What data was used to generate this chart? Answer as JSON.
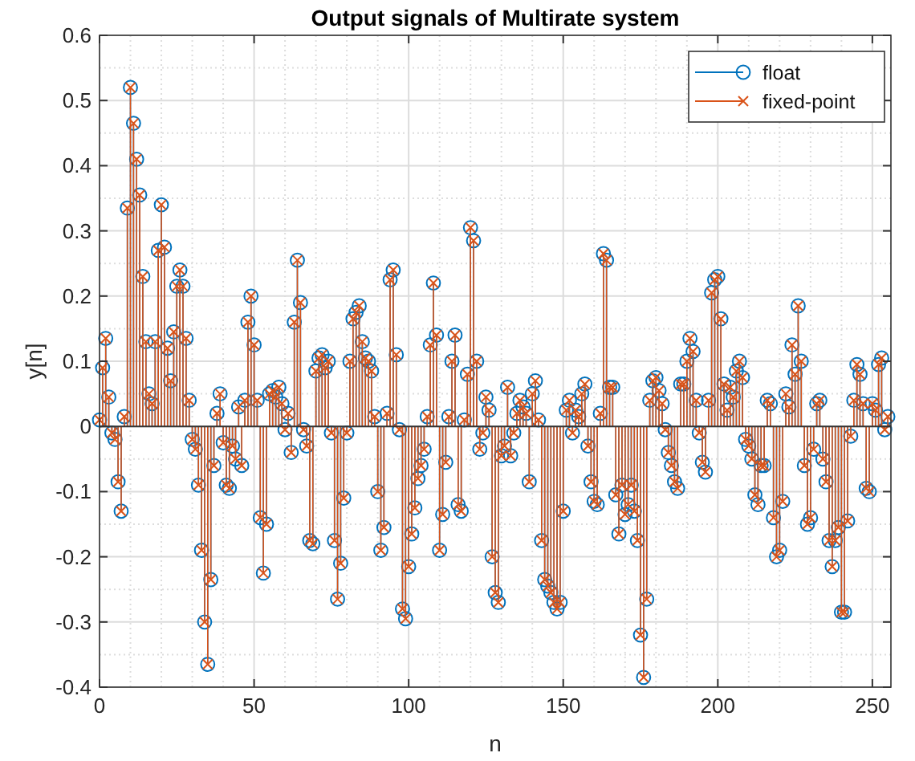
{
  "chart_data": {
    "type": "lollipop",
    "title": "Output signals of Multirate system",
    "xlabel": "n",
    "ylabel": "y[n]",
    "x": [
      0,
      1,
      2,
      3,
      4,
      5,
      6,
      7,
      8,
      9,
      10,
      11,
      12,
      13,
      14,
      15,
      16,
      17,
      18,
      19,
      20,
      21,
      22,
      23,
      24,
      25,
      26,
      27,
      28,
      29,
      30,
      31,
      32,
      33,
      34,
      35,
      36,
      37,
      38,
      39,
      40,
      41,
      42,
      43,
      44,
      45,
      46,
      47,
      48,
      49,
      50,
      51,
      52,
      53,
      54,
      55,
      56,
      57,
      58,
      59,
      60,
      61,
      62,
      63,
      64,
      65,
      66,
      67,
      68,
      69,
      70,
      71,
      72,
      73,
      74,
      75,
      76,
      77,
      78,
      79,
      80,
      81,
      82,
      83,
      84,
      85,
      86,
      87,
      88,
      89,
      90,
      91,
      92,
      93,
      94,
      95,
      96,
      97,
      98,
      99,
      100,
      101,
      102,
      103,
      104,
      105,
      106,
      107,
      108,
      109,
      110,
      111,
      112,
      113,
      114,
      115,
      116,
      117,
      118,
      119,
      120,
      121,
      122,
      123,
      124,
      125,
      126,
      127,
      128,
      129,
      130,
      131,
      132,
      133,
      134,
      135,
      136,
      137,
      138,
      139,
      140,
      141,
      142,
      143,
      144,
      145,
      146,
      147,
      148,
      149,
      150,
      151,
      152,
      153,
      154,
      155,
      156,
      157,
      158,
      159,
      160,
      161,
      162,
      163,
      164,
      165,
      166,
      167,
      168,
      169,
      170,
      171,
      172,
      173,
      174,
      175,
      176,
      177,
      178,
      179,
      180,
      181,
      182,
      183,
      184,
      185,
      186,
      187,
      188,
      189,
      190,
      191,
      192,
      193,
      194,
      195,
      196,
      197,
      198,
      199,
      200,
      201,
      202,
      203,
      204,
      205,
      206,
      207,
      208,
      209,
      210,
      211,
      212,
      213,
      214,
      215,
      216,
      217,
      218,
      219,
      220,
      221,
      222,
      223,
      224,
      225,
      226,
      227,
      228,
      229,
      230,
      231,
      232,
      233,
      234,
      235,
      236,
      237,
      238,
      239,
      240,
      241,
      242,
      243,
      244,
      245,
      246,
      247,
      248,
      249,
      250,
      251,
      252,
      253,
      254,
      255
    ],
    "series": [
      {
        "name": "float",
        "color": "#0072bd",
        "marker": "circle",
        "values": [
          0.01,
          0.09,
          0.135,
          0.045,
          -0.01,
          -0.02,
          -0.085,
          -0.13,
          0.015,
          0.335,
          0.52,
          0.465,
          0.41,
          0.355,
          0.23,
          0.13,
          0.05,
          0.035,
          0.13,
          0.27,
          0.34,
          0.275,
          0.12,
          0.07,
          0.145,
          0.215,
          0.24,
          0.215,
          0.135,
          0.04,
          -0.02,
          -0.035,
          -0.09,
          -0.19,
          -0.3,
          -0.365,
          -0.235,
          -0.06,
          0.02,
          0.05,
          -0.025,
          -0.09,
          -0.095,
          -0.03,
          -0.05,
          0.03,
          -0.06,
          0.04,
          0.16,
          0.2,
          0.125,
          0.04,
          -0.14,
          -0.225,
          -0.15,
          0.05,
          0.055,
          0.045,
          0.06,
          0.035,
          -0.005,
          0.02,
          -0.04,
          0.16,
          0.255,
          0.19,
          -0.005,
          -0.03,
          -0.175,
          -0.18,
          0.085,
          0.105,
          0.11,
          0.09,
          0.1,
          -0.01,
          -0.175,
          -0.265,
          -0.21,
          -0.11,
          -0.01,
          0.1,
          0.165,
          0.175,
          0.185,
          0.13,
          0.105,
          0.1,
          0.085,
          0.015,
          -0.1,
          -0.19,
          -0.155,
          0.02,
          0.225,
          0.24,
          0.11,
          -0.005,
          -0.28,
          -0.295,
          -0.215,
          -0.165,
          -0.125,
          -0.08,
          -0.06,
          -0.035,
          0.015,
          0.125,
          0.22,
          0.14,
          -0.19,
          -0.135,
          -0.055,
          0.015,
          0.1,
          0.14,
          -0.12,
          -0.13,
          0.01,
          0.08,
          0.305,
          0.285,
          0.1,
          -0.035,
          -0.01,
          0.045,
          0.025,
          -0.2,
          -0.255,
          -0.27,
          -0.045,
          -0.03,
          0.06,
          -0.045,
          -0.01,
          0.02,
          0.04,
          0.03,
          0.02,
          -0.085,
          0.05,
          0.07,
          0.01,
          -0.175,
          -0.235,
          -0.245,
          -0.255,
          -0.27,
          -0.28,
          -0.27,
          -0.13,
          0.025,
          0.04,
          -0.01,
          0.025,
          0.015,
          0.05,
          0.065,
          -0.03,
          -0.085,
          -0.115,
          -0.12,
          0.02,
          0.265,
          0.255,
          0.06,
          0.06,
          -0.105,
          -0.165,
          -0.09,
          -0.135,
          -0.12,
          -0.09,
          -0.13,
          -0.175,
          -0.32,
          -0.385,
          -0.265,
          0.04,
          0.07,
          0.075,
          0.055,
          0.035,
          -0.005,
          -0.04,
          -0.06,
          -0.085,
          -0.095,
          0.065,
          0.065,
          0.1,
          0.135,
          0.115,
          0.04,
          -0.01,
          -0.055,
          -0.07,
          0.04,
          0.205,
          0.225,
          0.23,
          0.165,
          0.065,
          0.025,
          0.06,
          0.045,
          0.085,
          0.1,
          0.075,
          -0.02,
          -0.03,
          -0.05,
          -0.105,
          -0.12,
          -0.06,
          -0.06,
          0.04,
          0.035,
          -0.14,
          -0.2,
          -0.19,
          -0.115,
          0.05,
          0.03,
          0.125,
          0.08,
          0.185,
          0.1,
          -0.06,
          -0.15,
          -0.14,
          -0.035,
          0.035,
          0.04,
          -0.05,
          -0.085,
          -0.175,
          -0.215,
          -0.175,
          -0.155,
          -0.285,
          -0.285,
          -0.145,
          -0.015,
          0.04,
          0.095,
          0.08,
          0.035,
          -0.095,
          -0.1,
          0.035,
          0.025,
          0.095,
          0.105,
          -0.005,
          0.015
        ]
      },
      {
        "name": "fixed-point",
        "color": "#d95319",
        "marker": "cross",
        "values": [
          0.01,
          0.09,
          0.135,
          0.045,
          -0.01,
          -0.02,
          -0.085,
          -0.13,
          0.015,
          0.335,
          0.52,
          0.465,
          0.41,
          0.355,
          0.23,
          0.13,
          0.05,
          0.035,
          0.13,
          0.27,
          0.34,
          0.275,
          0.12,
          0.07,
          0.145,
          0.215,
          0.24,
          0.215,
          0.135,
          0.04,
          -0.02,
          -0.035,
          -0.09,
          -0.19,
          -0.3,
          -0.365,
          -0.235,
          -0.06,
          0.02,
          0.05,
          -0.025,
          -0.09,
          -0.095,
          -0.03,
          -0.05,
          0.03,
          -0.06,
          0.04,
          0.16,
          0.2,
          0.125,
          0.04,
          -0.14,
          -0.225,
          -0.15,
          0.05,
          0.055,
          0.045,
          0.06,
          0.035,
          -0.005,
          0.02,
          -0.04,
          0.16,
          0.255,
          0.19,
          -0.005,
          -0.03,
          -0.175,
          -0.18,
          0.085,
          0.105,
          0.11,
          0.09,
          0.1,
          -0.01,
          -0.175,
          -0.265,
          -0.21,
          -0.11,
          -0.01,
          0.1,
          0.165,
          0.175,
          0.185,
          0.13,
          0.105,
          0.1,
          0.085,
          0.015,
          -0.1,
          -0.19,
          -0.155,
          0.02,
          0.225,
          0.24,
          0.11,
          -0.005,
          -0.28,
          -0.295,
          -0.215,
          -0.165,
          -0.125,
          -0.08,
          -0.06,
          -0.035,
          0.015,
          0.125,
          0.22,
          0.14,
          -0.19,
          -0.135,
          -0.055,
          0.015,
          0.1,
          0.14,
          -0.12,
          -0.13,
          0.01,
          0.08,
          0.305,
          0.285,
          0.1,
          -0.035,
          -0.01,
          0.045,
          0.025,
          -0.2,
          -0.255,
          -0.27,
          -0.045,
          -0.03,
          0.06,
          -0.045,
          -0.01,
          0.02,
          0.04,
          0.03,
          0.02,
          -0.085,
          0.05,
          0.07,
          0.01,
          -0.175,
          -0.235,
          -0.245,
          -0.255,
          -0.27,
          -0.28,
          -0.27,
          -0.13,
          0.025,
          0.04,
          -0.01,
          0.025,
          0.015,
          0.05,
          0.065,
          -0.03,
          -0.085,
          -0.115,
          -0.12,
          0.02,
          0.265,
          0.255,
          0.06,
          0.06,
          -0.105,
          -0.165,
          -0.09,
          -0.135,
          -0.12,
          -0.09,
          -0.13,
          -0.175,
          -0.32,
          -0.385,
          -0.265,
          0.04,
          0.07,
          0.075,
          0.055,
          0.035,
          -0.005,
          -0.04,
          -0.06,
          -0.085,
          -0.095,
          0.065,
          0.065,
          0.1,
          0.135,
          0.115,
          0.04,
          -0.01,
          -0.055,
          -0.07,
          0.04,
          0.205,
          0.225,
          0.23,
          0.165,
          0.065,
          0.025,
          0.06,
          0.045,
          0.085,
          0.1,
          0.075,
          -0.02,
          -0.03,
          -0.05,
          -0.105,
          -0.12,
          -0.06,
          -0.06,
          0.04,
          0.035,
          -0.14,
          -0.2,
          -0.19,
          -0.115,
          0.05,
          0.03,
          0.125,
          0.08,
          0.185,
          0.1,
          -0.06,
          -0.15,
          -0.14,
          -0.035,
          0.035,
          0.04,
          -0.05,
          -0.085,
          -0.175,
          -0.215,
          -0.175,
          -0.155,
          -0.285,
          -0.285,
          -0.145,
          -0.015,
          0.04,
          0.095,
          0.08,
          0.035,
          -0.095,
          -0.1,
          0.035,
          0.025,
          0.095,
          0.105,
          -0.005,
          0.015
        ]
      }
    ],
    "xlim": [
      0,
      256
    ],
    "xticks": [
      0,
      50,
      100,
      150,
      200,
      250
    ],
    "ylim": [
      -0.4,
      0.6
    ],
    "yticks": [
      -0.4,
      -0.3,
      -0.2,
      -0.1,
      0,
      0.1,
      0.2,
      0.3,
      0.4,
      0.5,
      0.6
    ],
    "grid": true,
    "legend": "top right"
  }
}
